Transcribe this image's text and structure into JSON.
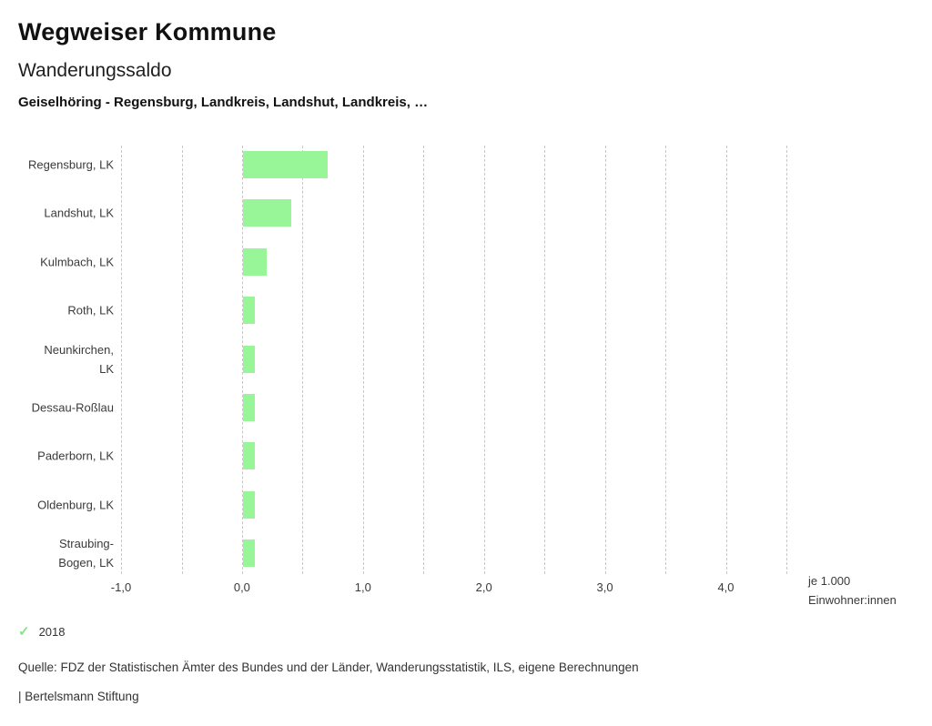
{
  "header": {
    "brand": "Wegweiser Kommune",
    "title": "Wanderungssaldo",
    "subtitle": "Geiselhöring - Regensburg, Landkreis, Landshut, Landkreis, …"
  },
  "chart_data": {
    "type": "bar",
    "orientation": "horizontal",
    "title": "Wanderungssaldo",
    "categories": [
      "Regensburg, LK",
      "Landshut, LK",
      "Kulmbach, LK",
      "Roth, LK",
      "Neunkirchen, LK",
      "Dessau-Roßlau",
      "Paderborn, LK",
      "Oldenburg, LK",
      "Straubing-Bogen, LK"
    ],
    "category_display_lines": [
      [
        "Regensburg, LK"
      ],
      [
        "Landshut, LK"
      ],
      [
        "Kulmbach, LK"
      ],
      [
        "Roth, LK"
      ],
      [
        "Neunkirchen,",
        "LK"
      ],
      [
        "Dessau-Roßlau"
      ],
      [
        "Paderborn, LK"
      ],
      [
        "Oldenburg, LK"
      ],
      [
        "Straubing-",
        "Bogen, LK"
      ]
    ],
    "series": [
      {
        "name": "2018",
        "values": [
          0.7,
          0.4,
          0.2,
          0.1,
          0.1,
          0.1,
          0.1,
          0.1,
          0.1
        ]
      }
    ],
    "xlim": [
      -1.0,
      4.5
    ],
    "gridline_step": 0.5,
    "grid": true,
    "x_tick_values": [
      -1,
      0,
      1,
      2,
      3,
      4
    ],
    "x_tick_labels": [
      "-1,0",
      "0,0",
      "1,0",
      "2,0",
      "3,0",
      "4,0"
    ],
    "xlabel_line1": "je 1.000",
    "xlabel_line2": "Einwohner:innen",
    "bar_color": "#98f598",
    "legend_position": "bottom-left"
  },
  "legend": {
    "check_icon": "✓",
    "year": "2018"
  },
  "footer": {
    "source": "Quelle: FDZ der Statistischen Ämter des Bundes und der Länder, Wanderungsstatistik, ILS, eigene Berechnungen",
    "brand": "| Bertelsmann Stiftung"
  }
}
